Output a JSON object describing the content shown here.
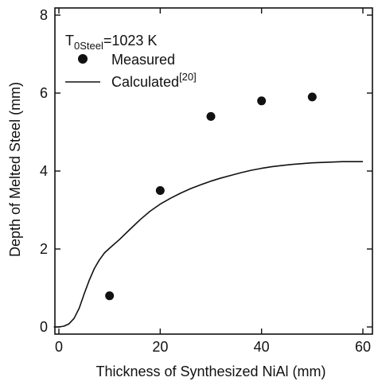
{
  "chart_data": {
    "type": "scatter",
    "xlabel": "Thickness of Synthesized NiAl  (mm)",
    "ylabel": "Depth of Melted Steel  (mm)",
    "xlim": [
      0,
      60
    ],
    "ylim": [
      0,
      8
    ],
    "x_ticks": [
      0,
      20,
      40,
      60
    ],
    "y_ticks": [
      0,
      2,
      4,
      6,
      8
    ],
    "grid": false,
    "legend_position": "top-left",
    "annotation": {
      "prefix": "T",
      "subscript": "0Steel",
      "suffix": "=1023 K"
    },
    "series": [
      {
        "name": "Measured",
        "kind": "markers",
        "x": [
          10,
          20,
          30,
          40,
          50
        ],
        "y": [
          0.8,
          3.5,
          5.4,
          5.8,
          5.9
        ]
      },
      {
        "name": "Calculated",
        "name_superscript": "[20]",
        "kind": "line",
        "x": [
          -1,
          0,
          1,
          2,
          3,
          4,
          5,
          6,
          7,
          8,
          9,
          10,
          12,
          14,
          16,
          18,
          20,
          22,
          24,
          26,
          28,
          30,
          32,
          34,
          36,
          38,
          40,
          42,
          44,
          46,
          48,
          50,
          52,
          54,
          56,
          58,
          60
        ],
        "y": [
          0,
          0,
          0.02,
          0.08,
          0.22,
          0.48,
          0.85,
          1.2,
          1.5,
          1.72,
          1.9,
          2.02,
          2.25,
          2.5,
          2.75,
          2.97,
          3.15,
          3.3,
          3.43,
          3.55,
          3.65,
          3.74,
          3.82,
          3.89,
          3.96,
          4.02,
          4.07,
          4.11,
          4.14,
          4.17,
          4.19,
          4.21,
          4.22,
          4.23,
          4.24,
          4.24,
          4.24
        ]
      }
    ],
    "colors": {
      "axis": "#111111",
      "marker": "#111111",
      "line": "#111111",
      "background": "#ffffff"
    }
  }
}
